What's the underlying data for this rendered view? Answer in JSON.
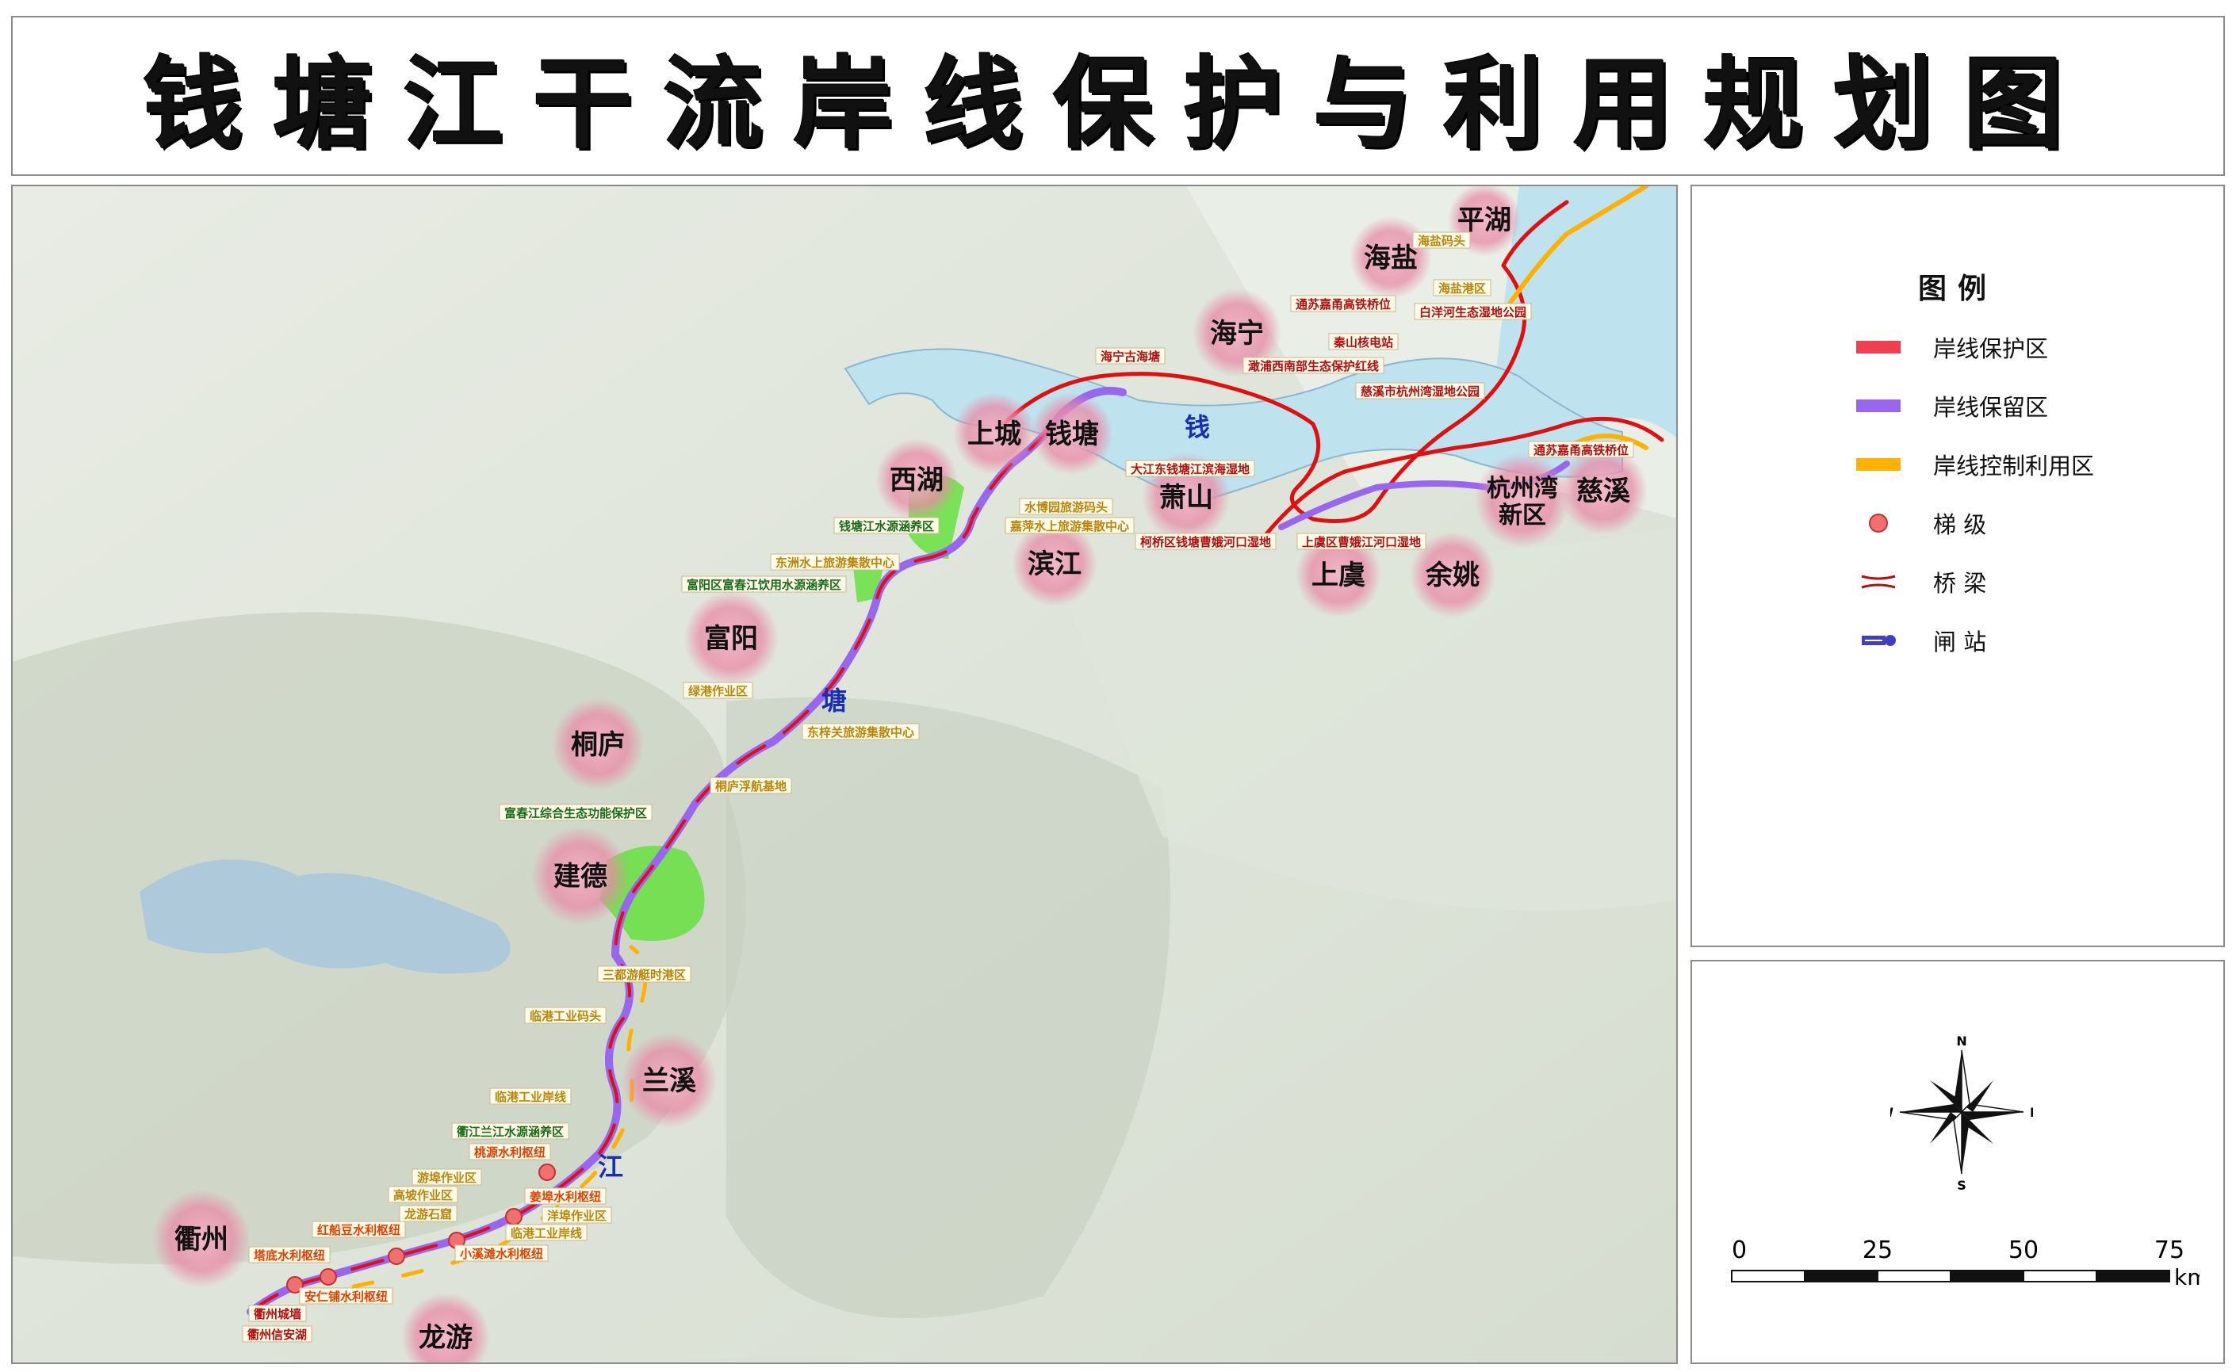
{
  "title": "钱塘江干流岸线保护与利用规划图",
  "river_glyphs": [
    "钱",
    "塘",
    "江"
  ],
  "cities": [
    {
      "id": "pinghu",
      "name": "平湖"
    },
    {
      "id": "haiyan",
      "name": "海盐"
    },
    {
      "id": "haining",
      "name": "海宁"
    },
    {
      "id": "shangcheng",
      "name": "上城"
    },
    {
      "id": "qiantang",
      "name": "钱塘"
    },
    {
      "id": "xihu",
      "name": "西湖"
    },
    {
      "id": "xiaoshan",
      "name": "萧山"
    },
    {
      "id": "binjiang",
      "name": "滨江"
    },
    {
      "id": "shangyu",
      "name": "上虞"
    },
    {
      "id": "yuyao",
      "name": "余姚"
    },
    {
      "id": "hzwan",
      "name": "杭州湾\n新区"
    },
    {
      "id": "cixi",
      "name": "慈溪"
    },
    {
      "id": "fuyang",
      "name": "富阳"
    },
    {
      "id": "tonglu",
      "name": "桐庐"
    },
    {
      "id": "jiande",
      "name": "建德"
    },
    {
      "id": "lanxi",
      "name": "兰溪"
    },
    {
      "id": "quzhou",
      "name": "衢州"
    },
    {
      "id": "longyou",
      "name": "龙游"
    }
  ],
  "site_labels": [
    {
      "id": "s1",
      "text": "海盐码头",
      "color": "#b8860b"
    },
    {
      "id": "s2",
      "text": "海盐港区",
      "color": "#b8860b"
    },
    {
      "id": "s3",
      "text": "白洋河生态湿地公园",
      "color": "#b01010"
    },
    {
      "id": "s4",
      "text": "通苏嘉甬高铁桥位",
      "color": "#b01010"
    },
    {
      "id": "s5",
      "text": "秦山核电站",
      "color": "#b01010"
    },
    {
      "id": "s6",
      "text": "澉浦西南部生态保护红线",
      "color": "#b01010"
    },
    {
      "id": "s7",
      "text": "慈溪市杭州湾湿地公园",
      "color": "#b01010"
    },
    {
      "id": "s8",
      "text": "海宁古海塘",
      "color": "#b01010"
    },
    {
      "id": "s9",
      "text": "大江东钱塘江滨海湿地",
      "color": "#b01010"
    },
    {
      "id": "s10",
      "text": "通苏嘉甬高铁桥位",
      "color": "#b01010"
    },
    {
      "id": "s11",
      "text": "水博园旅游码头",
      "color": "#b8860b"
    },
    {
      "id": "s12",
      "text": "嘉萍水上旅游集散中心",
      "color": "#b8860b"
    },
    {
      "id": "s13",
      "text": "钱塘江水源涵养区",
      "color": "#1a6b1a"
    },
    {
      "id": "s14",
      "text": "东洲水上旅游集散中心",
      "color": "#b8860b"
    },
    {
      "id": "s15",
      "text": "富阳区富春江饮用水源涵养区",
      "color": "#1a6b1a"
    },
    {
      "id": "s16",
      "text": "柯桥区钱塘曹娥河口湿地",
      "color": "#b01010"
    },
    {
      "id": "s17",
      "text": "上虞区曹娥江河口湿地",
      "color": "#b01010"
    },
    {
      "id": "s18",
      "text": "绿港作业区",
      "color": "#b8860b"
    },
    {
      "id": "s19",
      "text": "东梓关旅游集散中心",
      "color": "#b8860b"
    },
    {
      "id": "s20",
      "text": "桐庐浮航基地",
      "color": "#b8860b"
    },
    {
      "id": "s21",
      "text": "富春江综合生态功能保护区",
      "color": "#1a6b1a"
    },
    {
      "id": "s22",
      "text": "三都游艇时港区",
      "color": "#b8860b"
    },
    {
      "id": "s23",
      "text": "临港工业码头",
      "color": "#b8860b"
    },
    {
      "id": "s24",
      "text": "临港工业岸线",
      "color": "#b8860b"
    },
    {
      "id": "s25",
      "text": "衢江兰江水源涵养区",
      "color": "#1a6b1a"
    },
    {
      "id": "s26",
      "text": "桃源水利枢纽",
      "color": "#e04000"
    },
    {
      "id": "s27",
      "text": "游埠作业区",
      "color": "#b8860b"
    },
    {
      "id": "s28",
      "text": "姜埠水利枢纽",
      "color": "#e04000"
    },
    {
      "id": "s29",
      "text": "高坡作业区",
      "color": "#b8860b"
    },
    {
      "id": "s30",
      "text": "龙游石窟",
      "color": "#b8860b"
    },
    {
      "id": "s31",
      "text": "洋埠作业区",
      "color": "#b8860b"
    },
    {
      "id": "s32",
      "text": "临港工业岸线",
      "color": "#b8860b"
    },
    {
      "id": "s33",
      "text": "红船豆水利枢纽",
      "color": "#e04000"
    },
    {
      "id": "s34",
      "text": "小溪滩水利枢纽",
      "color": "#e04000"
    },
    {
      "id": "s35",
      "text": "塔底水利枢纽",
      "color": "#e04000"
    },
    {
      "id": "s36",
      "text": "安仁铺水利枢纽",
      "color": "#e04000"
    },
    {
      "id": "s37",
      "text": "衢州城墙",
      "color": "#b01010"
    },
    {
      "id": "s38",
      "text": "衢州信安湖",
      "color": "#b01010"
    }
  ],
  "legend": {
    "title": "图例",
    "items": [
      {
        "id": "protect",
        "label": "岸线保护区",
        "color": "#f04050",
        "symbol": "bar"
      },
      {
        "id": "reserve",
        "label": "岸线保留区",
        "color": "#9966ee",
        "symbol": "bar"
      },
      {
        "id": "control",
        "label": "岸线控制利用区",
        "color": "#ffb000",
        "symbol": "bar"
      },
      {
        "id": "weir",
        "label": "梯 级",
        "color": "#f07070",
        "symbol": "dot"
      },
      {
        "id": "bridge",
        "label": "桥 梁",
        "color": "#b01010",
        "symbol": "bridge"
      },
      {
        "id": "sluice",
        "label": "闸 站",
        "color": "#4040c0",
        "symbol": "sluice"
      }
    ]
  },
  "compass": {
    "n": "N",
    "s": "S",
    "e": "E",
    "w": "W"
  },
  "scale_bar": {
    "ticks": [
      "0",
      "25",
      "50",
      "75"
    ],
    "unit": "km"
  },
  "colors": {
    "water": "#bfe2ef",
    "protect": "#e01010",
    "reserve": "#9966ee",
    "control": "#ffb000",
    "green_zone": "#66e040",
    "city_halo": "#e590a8"
  }
}
